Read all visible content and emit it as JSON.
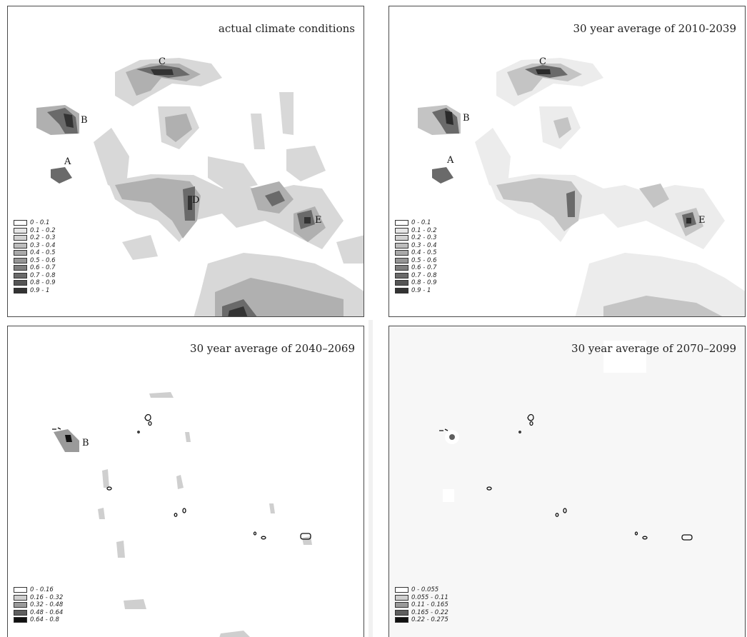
{
  "panels": [
    {
      "title": "actual climate conditions",
      "legend": [
        "0 - 0.1",
        "0.1 - 0.2",
        "0.2 - 0.3",
        "0.3 - 0.4",
        "0.4 - 0.5",
        "0.5 - 0.6",
        "0.6 - 0.7",
        "0.7 - 0.8",
        "0.8 - 0.9",
        "0.9 - 1"
      ],
      "legend_colors": [
        "#ffffff",
        "#e6e6e6",
        "#d2d2d2",
        "#bdbdbd",
        "#a9a9a9",
        "#959595",
        "#7f7f7f",
        "#6a6a6a",
        "#555555",
        "#333333"
      ],
      "labels": [
        "A",
        "B",
        "C",
        "D",
        "E"
      ]
    },
    {
      "title": "30 year average of 2010-2039",
      "legend": [
        "0 - 0.1",
        "0.1 - 0.2",
        "0.2 - 0.3",
        "0.3 - 0.4",
        "0.4 - 0.5",
        "0.5 - 0.6",
        "0.6 - 0.7",
        "0.7 - 0.8",
        "0.8 - 0.9",
        "0.9 - 1"
      ],
      "legend_colors": [
        "#ffffff",
        "#e6e6e6",
        "#d2d2d2",
        "#bdbdbd",
        "#a9a9a9",
        "#959595",
        "#7f7f7f",
        "#6a6a6a",
        "#555555",
        "#333333"
      ],
      "labels": [
        "A",
        "B",
        "C",
        "E"
      ]
    },
    {
      "title": "30 year average of 2040–2069",
      "legend": [
        "0 - 0.16",
        "0.16 - 0.32",
        "0.32 - 0.48",
        "0.48 - 0.64",
        "0.64 - 0.8"
      ],
      "legend_colors": [
        "#ffffff",
        "#cfcfcf",
        "#9a9a9a",
        "#5f5f5f",
        "#111111"
      ],
      "labels": [
        "B"
      ]
    },
    {
      "title": "30 year average of 2070–2099",
      "legend": [
        "0 - 0.055",
        "0.055 - 0.11",
        "0.11 - 0.165",
        "0.165 - 0.22",
        "0.22 - 0.275"
      ],
      "legend_colors": [
        "#ffffff",
        "#cfcfcf",
        "#9a9a9a",
        "#5f5f5f",
        "#111111"
      ],
      "labels": []
    }
  ]
}
